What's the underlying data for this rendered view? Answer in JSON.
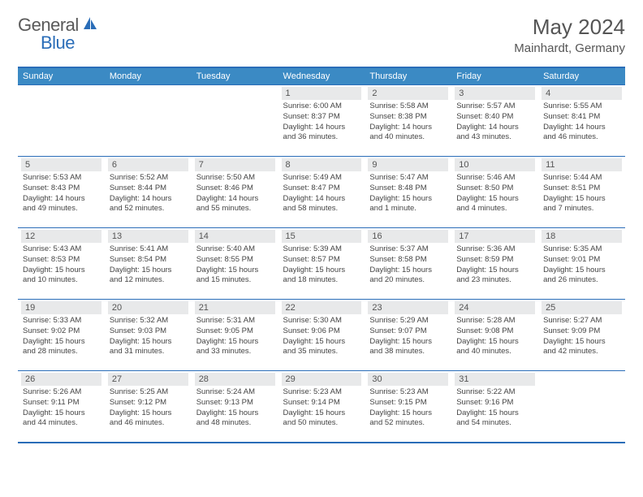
{
  "logo": {
    "text_general": "General",
    "text_blue": "Blue"
  },
  "title": "May 2024",
  "location": "Mainhardt, Germany",
  "colors": {
    "header_bg": "#3b8ac4",
    "border": "#2a6db8",
    "daynum_bg": "#e8e9ea",
    "text": "#444444",
    "title_text": "#555555"
  },
  "weekdays": [
    "Sunday",
    "Monday",
    "Tuesday",
    "Wednesday",
    "Thursday",
    "Friday",
    "Saturday"
  ],
  "weeks": [
    [
      null,
      null,
      null,
      {
        "n": "1",
        "sr": "6:00 AM",
        "ss": "8:37 PM",
        "dl": "14 hours and 36 minutes."
      },
      {
        "n": "2",
        "sr": "5:58 AM",
        "ss": "8:38 PM",
        "dl": "14 hours and 40 minutes."
      },
      {
        "n": "3",
        "sr": "5:57 AM",
        "ss": "8:40 PM",
        "dl": "14 hours and 43 minutes."
      },
      {
        "n": "4",
        "sr": "5:55 AM",
        "ss": "8:41 PM",
        "dl": "14 hours and 46 minutes."
      }
    ],
    [
      {
        "n": "5",
        "sr": "5:53 AM",
        "ss": "8:43 PM",
        "dl": "14 hours and 49 minutes."
      },
      {
        "n": "6",
        "sr": "5:52 AM",
        "ss": "8:44 PM",
        "dl": "14 hours and 52 minutes."
      },
      {
        "n": "7",
        "sr": "5:50 AM",
        "ss": "8:46 PM",
        "dl": "14 hours and 55 minutes."
      },
      {
        "n": "8",
        "sr": "5:49 AM",
        "ss": "8:47 PM",
        "dl": "14 hours and 58 minutes."
      },
      {
        "n": "9",
        "sr": "5:47 AM",
        "ss": "8:48 PM",
        "dl": "15 hours and 1 minute."
      },
      {
        "n": "10",
        "sr": "5:46 AM",
        "ss": "8:50 PM",
        "dl": "15 hours and 4 minutes."
      },
      {
        "n": "11",
        "sr": "5:44 AM",
        "ss": "8:51 PM",
        "dl": "15 hours and 7 minutes."
      }
    ],
    [
      {
        "n": "12",
        "sr": "5:43 AM",
        "ss": "8:53 PM",
        "dl": "15 hours and 10 minutes."
      },
      {
        "n": "13",
        "sr": "5:41 AM",
        "ss": "8:54 PM",
        "dl": "15 hours and 12 minutes."
      },
      {
        "n": "14",
        "sr": "5:40 AM",
        "ss": "8:55 PM",
        "dl": "15 hours and 15 minutes."
      },
      {
        "n": "15",
        "sr": "5:39 AM",
        "ss": "8:57 PM",
        "dl": "15 hours and 18 minutes."
      },
      {
        "n": "16",
        "sr": "5:37 AM",
        "ss": "8:58 PM",
        "dl": "15 hours and 20 minutes."
      },
      {
        "n": "17",
        "sr": "5:36 AM",
        "ss": "8:59 PM",
        "dl": "15 hours and 23 minutes."
      },
      {
        "n": "18",
        "sr": "5:35 AM",
        "ss": "9:01 PM",
        "dl": "15 hours and 26 minutes."
      }
    ],
    [
      {
        "n": "19",
        "sr": "5:33 AM",
        "ss": "9:02 PM",
        "dl": "15 hours and 28 minutes."
      },
      {
        "n": "20",
        "sr": "5:32 AM",
        "ss": "9:03 PM",
        "dl": "15 hours and 31 minutes."
      },
      {
        "n": "21",
        "sr": "5:31 AM",
        "ss": "9:05 PM",
        "dl": "15 hours and 33 minutes."
      },
      {
        "n": "22",
        "sr": "5:30 AM",
        "ss": "9:06 PM",
        "dl": "15 hours and 35 minutes."
      },
      {
        "n": "23",
        "sr": "5:29 AM",
        "ss": "9:07 PM",
        "dl": "15 hours and 38 minutes."
      },
      {
        "n": "24",
        "sr": "5:28 AM",
        "ss": "9:08 PM",
        "dl": "15 hours and 40 minutes."
      },
      {
        "n": "25",
        "sr": "5:27 AM",
        "ss": "9:09 PM",
        "dl": "15 hours and 42 minutes."
      }
    ],
    [
      {
        "n": "26",
        "sr": "5:26 AM",
        "ss": "9:11 PM",
        "dl": "15 hours and 44 minutes."
      },
      {
        "n": "27",
        "sr": "5:25 AM",
        "ss": "9:12 PM",
        "dl": "15 hours and 46 minutes."
      },
      {
        "n": "28",
        "sr": "5:24 AM",
        "ss": "9:13 PM",
        "dl": "15 hours and 48 minutes."
      },
      {
        "n": "29",
        "sr": "5:23 AM",
        "ss": "9:14 PM",
        "dl": "15 hours and 50 minutes."
      },
      {
        "n": "30",
        "sr": "5:23 AM",
        "ss": "9:15 PM",
        "dl": "15 hours and 52 minutes."
      },
      {
        "n": "31",
        "sr": "5:22 AM",
        "ss": "9:16 PM",
        "dl": "15 hours and 54 minutes."
      },
      null
    ]
  ],
  "labels": {
    "sunrise": "Sunrise: ",
    "sunset": "Sunset: ",
    "daylight": "Daylight: "
  }
}
